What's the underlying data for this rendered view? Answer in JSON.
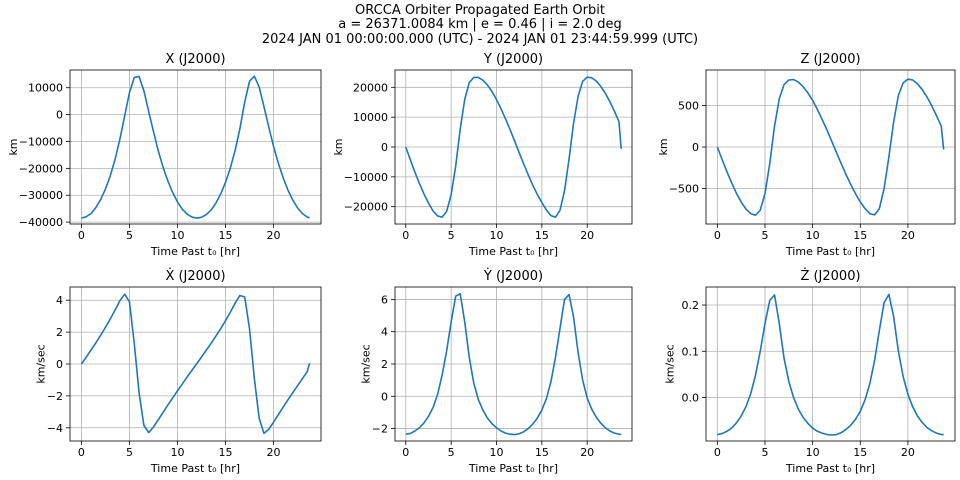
{
  "figure": {
    "title_lines": [
      "ORCCA Orbiter Propagated Earth Orbit",
      "a = 26371.0084 km | e = 0.46 | i = 2.0 deg",
      "2024 JAN 01 00:00:00.000 (UTC) - 2024 JAN 01 23:44:59.999 (UTC)"
    ],
    "line_color": "#1f77b4"
  },
  "chart_data": [
    {
      "type": "line",
      "title": "X (J2000)",
      "xlabel": "Time Past t₀ [hr]",
      "ylabel": "km",
      "xlim": [
        -1.19,
        24.94
      ],
      "ylim": [
        -40700,
        16600
      ],
      "xticks": [
        0,
        5,
        10,
        15,
        20
      ],
      "yticks": [
        -40000,
        -30000,
        -20000,
        -10000,
        0,
        10000
      ],
      "ytick_labels": [
        "−40000",
        "−30000",
        "−20000",
        "−10000",
        "0",
        "10000"
      ],
      "grid": true,
      "series": [
        {
          "x": [
            0,
            0.5,
            1,
            1.5,
            2,
            2.5,
            3,
            3.5,
            4,
            4.5,
            5,
            5.5,
            6,
            6.5,
            7,
            7.5,
            8,
            8.5,
            9,
            9.5,
            10,
            10.5,
            11,
            11.5,
            12,
            12.5,
            13,
            13.5,
            14,
            14.5,
            15,
            15.5,
            16,
            16.5,
            17,
            17.5,
            18,
            18.5,
            19,
            19.5,
            20,
            20.5,
            21,
            21.5,
            22,
            22.5,
            23,
            23.5,
            23.75
          ],
          "y": [
            -38500,
            -38000,
            -36800,
            -34600,
            -31600,
            -27700,
            -22800,
            -16700,
            -9200,
            -500,
            8200,
            13800,
            14200,
            8900,
            1200,
            -6300,
            -13500,
            -19600,
            -24700,
            -29000,
            -32500,
            -35200,
            -37000,
            -38100,
            -38500,
            -38200,
            -37200,
            -35500,
            -32900,
            -29500,
            -25200,
            -19900,
            -13300,
            -5200,
            4700,
            12400,
            14300,
            10300,
            3000,
            -4600,
            -11800,
            -18100,
            -23500,
            -28100,
            -31800,
            -34700,
            -36800,
            -38100,
            -38400
          ]
        }
      ]
    },
    {
      "type": "line",
      "title": "Y (J2000)",
      "xlabel": "Time Past t₀ [hr]",
      "ylabel": "km",
      "xlim": [
        -1.19,
        24.94
      ],
      "ylim": [
        -25800,
        25800
      ],
      "xticks": [
        0,
        5,
        10,
        15,
        20
      ],
      "yticks": [
        -20000,
        -10000,
        0,
        10000,
        20000
      ],
      "ytick_labels": [
        "−20000",
        "−10000",
        "0",
        "10000",
        "20000"
      ],
      "grid": true,
      "series": [
        {
          "x": [
            0,
            0.5,
            1,
            1.5,
            2,
            2.5,
            3,
            3.5,
            4,
            4.5,
            5,
            5.5,
            6,
            6.5,
            7,
            7.5,
            8,
            8.5,
            9,
            9.5,
            10,
            10.5,
            11,
            11.5,
            12,
            12.5,
            13,
            13.5,
            14,
            14.5,
            15,
            15.5,
            16,
            16.5,
            17,
            17.5,
            18,
            18.5,
            19,
            19.5,
            20,
            20.5,
            21,
            21.5,
            22,
            22.5,
            23,
            23.5,
            23.75
          ],
          "y": [
            0,
            -4300,
            -8400,
            -12200,
            -15700,
            -18800,
            -21400,
            -23100,
            -23500,
            -21600,
            -16000,
            -6400,
            6000,
            16000,
            21600,
            23300,
            23300,
            22400,
            20800,
            18600,
            15900,
            12800,
            9400,
            5800,
            2000,
            -1900,
            -5700,
            -9300,
            -12800,
            -15900,
            -18600,
            -21100,
            -23000,
            -23500,
            -21200,
            -14700,
            -4000,
            8000,
            17000,
            22000,
            23400,
            23200,
            22100,
            20300,
            18000,
            15200,
            12000,
            8500,
            -600
          ]
        }
      ]
    },
    {
      "type": "line",
      "title": "Z (J2000)",
      "xlabel": "Time Past t₀ [hr]",
      "ylabel": "km",
      "xlim": [
        -1.19,
        24.94
      ],
      "ylim": [
        -925,
        925
      ],
      "xticks": [
        0,
        5,
        10,
        15,
        20
      ],
      "yticks": [
        -500,
        0,
        500
      ],
      "ytick_labels": [
        "−500",
        "0",
        "500"
      ],
      "grid": true,
      "series": [
        {
          "x": [
            0,
            0.5,
            1,
            1.5,
            2,
            2.5,
            3,
            3.5,
            4,
            4.5,
            5,
            5.5,
            6,
            6.5,
            7,
            7.5,
            8,
            8.5,
            9,
            9.5,
            10,
            10.5,
            11,
            11.5,
            12,
            12.5,
            13,
            13.5,
            14,
            14.5,
            15,
            15.5,
            16,
            16.5,
            17,
            17.5,
            18,
            18.5,
            19,
            19.5,
            20,
            20.5,
            21,
            21.5,
            22,
            22.5,
            23,
            23.5,
            23.75
          ],
          "y": [
            0,
            -150,
            -295,
            -430,
            -555,
            -660,
            -745,
            -800,
            -820,
            -760,
            -560,
            -200,
            250,
            580,
            750,
            805,
            810,
            780,
            725,
            650,
            560,
            450,
            330,
            205,
            70,
            -65,
            -200,
            -330,
            -450,
            -560,
            -660,
            -740,
            -800,
            -815,
            -740,
            -500,
            -120,
            300,
            620,
            770,
            815,
            805,
            760,
            690,
            600,
            495,
            375,
            250,
            -30
          ]
        }
      ]
    },
    {
      "type": "line",
      "title": "Ẋ (J2000)",
      "xlabel": "Time Past t₀ [hr]",
      "ylabel": "km/sec",
      "xlim": [
        -1.19,
        24.94
      ],
      "ylim": [
        -4.83,
        4.83
      ],
      "xticks": [
        0,
        5,
        10,
        15,
        20
      ],
      "yticks": [
        -4,
        -2,
        0,
        2,
        4
      ],
      "ytick_labels": [
        "−4",
        "−2",
        "0",
        "2",
        "4"
      ],
      "grid": true,
      "series": [
        {
          "x": [
            0,
            0.5,
            1,
            1.5,
            2,
            2.5,
            3,
            3.5,
            4,
            4.5,
            5,
            5.5,
            6,
            6.5,
            7,
            7.5,
            8,
            8.5,
            9,
            9.5,
            10,
            10.5,
            11,
            11.5,
            12,
            12.5,
            13,
            13.5,
            14,
            14.5,
            15,
            15.5,
            16,
            16.5,
            17,
            17.5,
            18,
            18.5,
            19,
            19.5,
            20,
            20.5,
            21,
            21.5,
            22,
            22.5,
            23,
            23.5,
            23.75
          ],
          "y": [
            0,
            0.43,
            0.88,
            1.33,
            1.8,
            2.3,
            2.82,
            3.38,
            3.97,
            4.38,
            3.9,
            1.3,
            -1.8,
            -3.85,
            -4.3,
            -3.95,
            -3.5,
            -3.03,
            -2.57,
            -2.12,
            -1.68,
            -1.25,
            -0.82,
            -0.4,
            0.02,
            0.44,
            0.87,
            1.3,
            1.75,
            2.22,
            2.72,
            3.25,
            3.82,
            4.3,
            4.2,
            2.2,
            -0.9,
            -3.4,
            -4.35,
            -4.1,
            -3.65,
            -3.18,
            -2.71,
            -2.25,
            -1.8,
            -1.36,
            -0.92,
            -0.49,
            0.05
          ]
        }
      ]
    },
    {
      "type": "line",
      "title": "Ẏ (J2000)",
      "xlabel": "Time Past t₀ [hr]",
      "ylabel": "km/sec",
      "xlim": [
        -1.19,
        24.94
      ],
      "ylim": [
        -2.77,
        6.77
      ],
      "xticks": [
        0,
        5,
        10,
        15,
        20
      ],
      "yticks": [
        -2,
        0,
        2,
        4,
        6
      ],
      "ytick_labels": [
        "−2",
        "0",
        "2",
        "4",
        "6"
      ],
      "grid": true,
      "series": [
        {
          "x": [
            0,
            0.5,
            1,
            1.5,
            2,
            2.5,
            3,
            3.5,
            4,
            4.5,
            5,
            5.5,
            6,
            6.5,
            7,
            7.5,
            8,
            8.5,
            9,
            9.5,
            10,
            10.5,
            11,
            11.5,
            12,
            12.5,
            13,
            13.5,
            14,
            14.5,
            15,
            15.5,
            16,
            16.5,
            17,
            17.5,
            18,
            18.5,
            19,
            19.5,
            20,
            20.5,
            21,
            21.5,
            22,
            22.5,
            23,
            23.5,
            23.75
          ],
          "y": [
            -2.35,
            -2.3,
            -2.15,
            -1.95,
            -1.65,
            -1.25,
            -0.7,
            0.1,
            1.3,
            2.8,
            4.6,
            6.2,
            6.35,
            4.6,
            2.4,
            0.8,
            -0.2,
            -0.85,
            -1.35,
            -1.7,
            -1.95,
            -2.15,
            -2.28,
            -2.35,
            -2.37,
            -2.32,
            -2.2,
            -2.0,
            -1.72,
            -1.35,
            -0.85,
            -0.15,
            0.9,
            2.4,
            4.2,
            6.0,
            6.3,
            4.9,
            2.7,
            1.0,
            -0.1,
            -0.8,
            -1.3,
            -1.67,
            -1.95,
            -2.15,
            -2.28,
            -2.35,
            -2.36
          ]
        }
      ]
    },
    {
      "type": "line",
      "title": "Ż (J2000)",
      "xlabel": "Time Past t₀ [hr]",
      "ylabel": "km/sec",
      "xlim": [
        -1.19,
        24.94
      ],
      "ylim": [
        -0.094,
        0.239
      ],
      "xticks": [
        0,
        5,
        10,
        15,
        20
      ],
      "yticks": [
        0.0,
        0.1,
        0.2
      ],
      "ytick_labels": [
        "0.0",
        "0.1",
        "0.2"
      ],
      "grid": true,
      "series": [
        {
          "x": [
            0,
            0.5,
            1,
            1.5,
            2,
            2.5,
            3,
            3.5,
            4,
            4.5,
            5,
            5.5,
            6,
            6.5,
            7,
            7.5,
            8,
            8.5,
            9,
            9.5,
            10,
            10.5,
            11,
            11.5,
            12,
            12.5,
            13,
            13.5,
            14,
            14.5,
            15,
            15.5,
            16,
            16.5,
            17,
            17.5,
            18,
            18.5,
            19,
            19.5,
            20,
            20.5,
            21,
            21.5,
            22,
            22.5,
            23,
            23.5,
            23.75
          ],
          "y": [
            -0.08,
            -0.078,
            -0.073,
            -0.066,
            -0.055,
            -0.04,
            -0.02,
            0.008,
            0.048,
            0.1,
            0.16,
            0.21,
            0.222,
            0.16,
            0.085,
            0.035,
            0.0,
            -0.025,
            -0.043,
            -0.056,
            -0.066,
            -0.073,
            -0.077,
            -0.08,
            -0.081,
            -0.08,
            -0.076,
            -0.069,
            -0.06,
            -0.047,
            -0.03,
            -0.005,
            0.03,
            0.08,
            0.145,
            0.205,
            0.223,
            0.175,
            0.1,
            0.045,
            0.007,
            -0.02,
            -0.04,
            -0.054,
            -0.065,
            -0.072,
            -0.077,
            -0.08,
            -0.08
          ]
        }
      ]
    }
  ]
}
